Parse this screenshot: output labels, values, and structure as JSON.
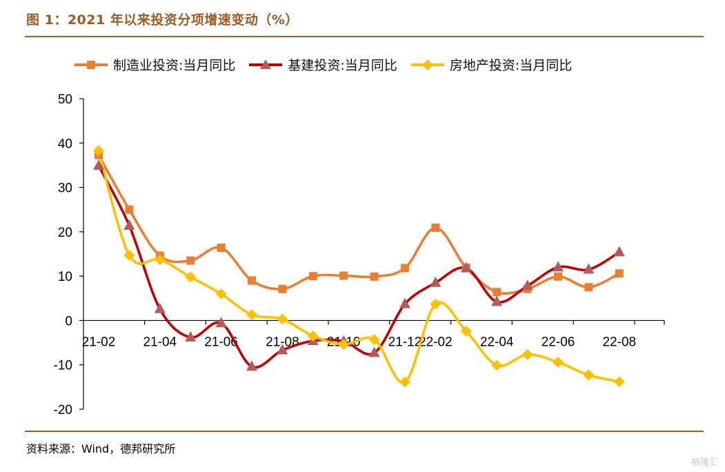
{
  "header": {
    "title": "图 1：2021 年以来投资分项增速变动（%）"
  },
  "footer": {
    "source": "资料来源：Wind，德邦研究所",
    "watermark": "格隆汇"
  },
  "colors": {
    "rule": "#9C5A24",
    "manufacturing": "#ED7D31",
    "infrastructure": "#C00000",
    "real_estate": "#FFC000"
  },
  "chart_data": {
    "type": "line",
    "title": "2021 年以来投资分项增速变动（%）",
    "xlabel": "",
    "ylabel": "",
    "ylim": [
      -20,
      50
    ],
    "yticks": [
      -20,
      -10,
      0,
      10,
      20,
      30,
      40,
      50
    ],
    "x": [
      "21-02",
      "21-03",
      "21-04",
      "21-05",
      "21-06",
      "21-07",
      "21-08",
      "21-09",
      "21-10",
      "21-11",
      "21-12",
      "22-02",
      "22-03",
      "22-04",
      "22-05",
      "22-06",
      "22-07",
      "22-08"
    ],
    "xtick_labels": [
      "21-02",
      "21-04",
      "21-06",
      "21-08",
      "21-10",
      "21-12",
      "22-02",
      "22-04",
      "22-06",
      "22-08"
    ],
    "series": [
      {
        "name": "制造业投资:当月同比",
        "marker": "square",
        "color": "#ED7D31",
        "values": [
          37.3,
          25.0,
          14.6,
          13.5,
          16.4,
          9.0,
          7.1,
          10.0,
          10.1,
          9.9,
          11.8,
          20.9,
          11.9,
          6.4,
          7.1,
          9.9,
          7.5,
          10.6
        ]
      },
      {
        "name": "基建投资:当月同比",
        "marker": "triangle",
        "color": "#C00000",
        "values": [
          34.9,
          21.4,
          2.6,
          -3.8,
          -0.6,
          -10.4,
          -6.7,
          -4.6,
          -4.7,
          -7.3,
          3.7,
          8.5,
          11.8,
          4.2,
          7.8,
          12.0,
          11.5,
          15.4
        ]
      },
      {
        "name": "房地产投资:当月同比",
        "marker": "diamond",
        "color": "#FFC000",
        "values": [
          38.3,
          14.7,
          13.7,
          9.8,
          6.0,
          1.3,
          0.3,
          -3.5,
          -5.4,
          -4.3,
          -13.9,
          3.7,
          -2.4,
          -10.1,
          -7.7,
          -9.4,
          -12.3,
          -13.8
        ]
      }
    ],
    "legend_position": "top"
  }
}
